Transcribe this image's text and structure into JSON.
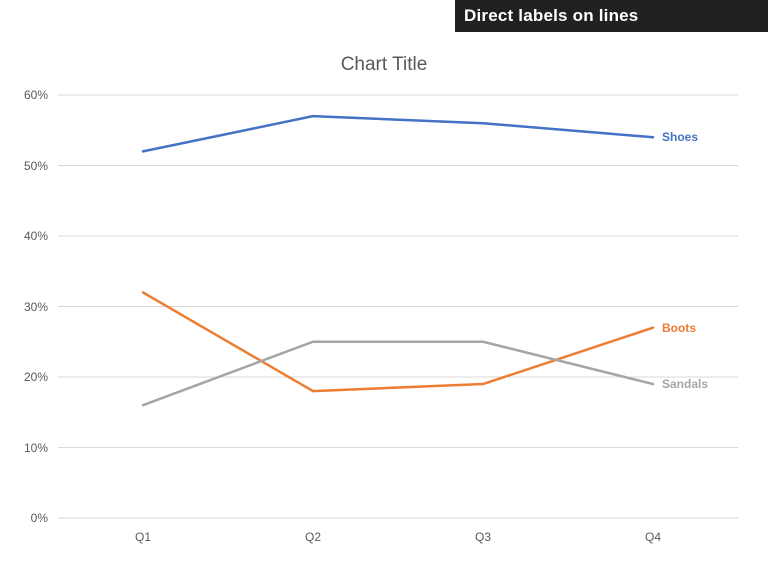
{
  "banner": {
    "label": "Direct labels on lines",
    "bg_color": "#212121",
    "text_color": "#ffffff"
  },
  "chart_data": {
    "type": "line",
    "title": "Chart Title",
    "categories": [
      "Q1",
      "Q2",
      "Q3",
      "Q4"
    ],
    "series": [
      {
        "name": "Shoes",
        "values": [
          52,
          57,
          56,
          54
        ],
        "color": "#4472C4"
      },
      {
        "name": "Boots",
        "values": [
          32,
          18,
          19,
          27
        ],
        "color": "#ED7D31"
      },
      {
        "name": "Sandals",
        "values": [
          16,
          25,
          25,
          19
        ],
        "color": "#A5A5A5"
      }
    ],
    "unit": "%",
    "ylim": [
      0,
      60
    ],
    "ytick_step": 10,
    "ytick_labels": [
      "0%",
      "10%",
      "20%",
      "30%",
      "40%",
      "50%",
      "60%"
    ],
    "xlabel": "",
    "ylabel": "",
    "grid": true,
    "legend": "direct labels at line ends",
    "gridline_color": "#D9D9D9",
    "label_color": "#595959",
    "title_color": "#595959"
  }
}
